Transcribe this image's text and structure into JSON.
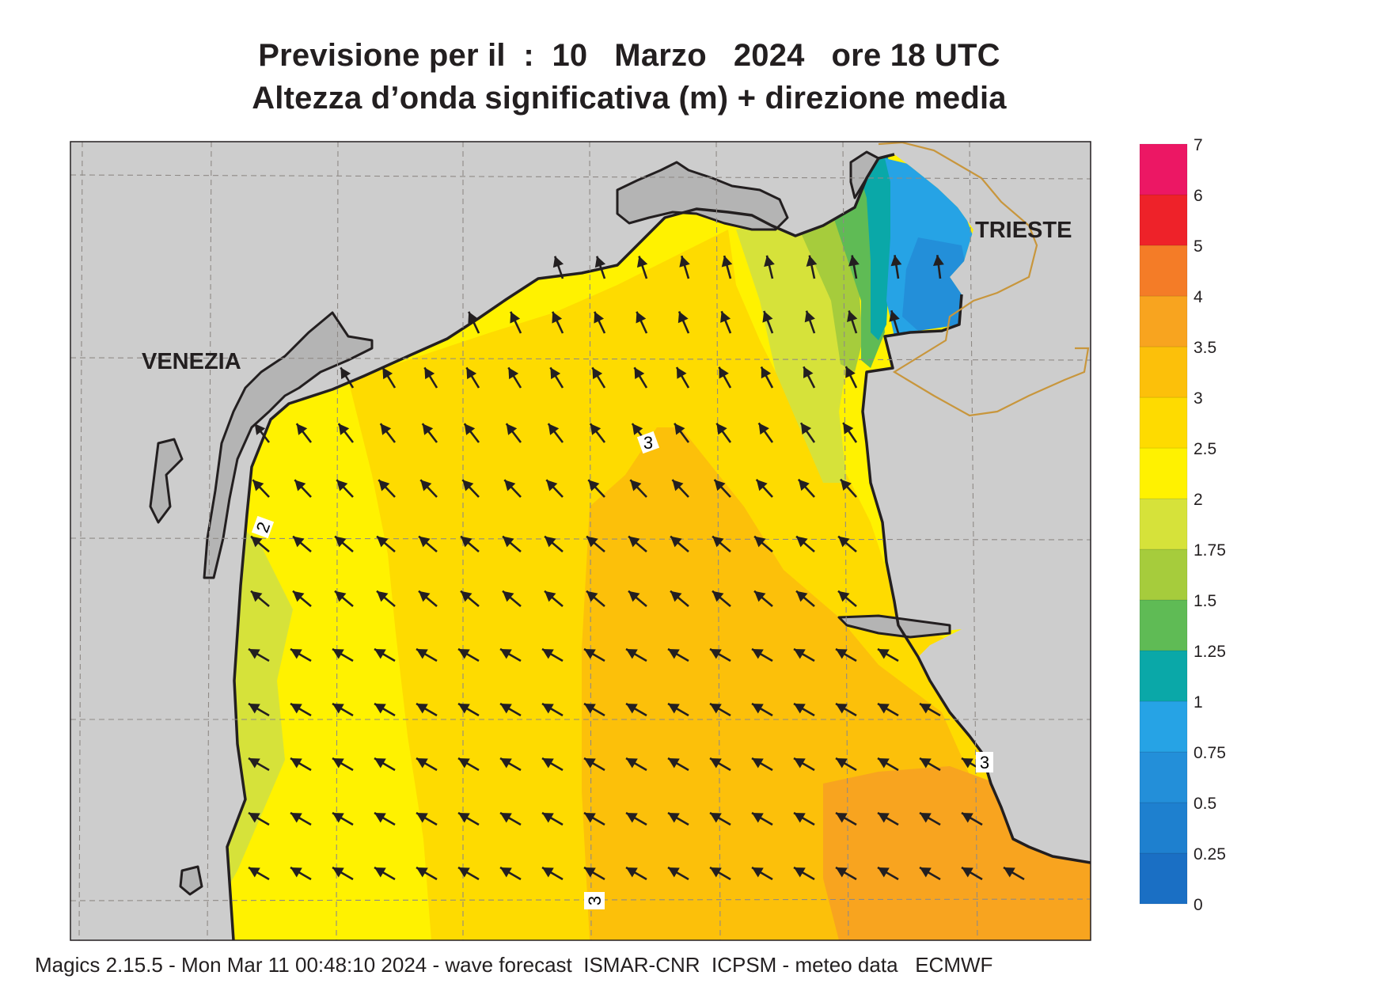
{
  "title": {
    "line1": "Previsione per il  :  10   Marzo   2024   ore 18 UTC",
    "line2": "Altezza d’onda significativa (m) + direzione media"
  },
  "places": [
    {
      "id": "venezia",
      "label": "VENEZIA"
    },
    {
      "id": "trieste",
      "label": "TRIESTE"
    }
  ],
  "contour_labels": [
    "3",
    "2",
    "3",
    "3"
  ],
  "colorbar": {
    "title": "",
    "unit": "m",
    "ticks": [
      "0",
      "0.25",
      "0.5",
      "0.75",
      "1",
      "1.25",
      "1.5",
      "1.75",
      "2",
      "2.5",
      "3",
      "3.5",
      "4",
      "5",
      "6",
      "7"
    ],
    "colors": [
      "#1a6fc4",
      "#1e80cf",
      "#238fd9",
      "#26a3e5",
      "#0aa8a8",
      "#5fbb55",
      "#a6cc3c",
      "#d6e23a",
      "#fff200",
      "#fedb00",
      "#fcc00a",
      "#f8a41f",
      "#f47c27",
      "#ee2229",
      "#ec1764"
    ]
  },
  "wave_direction": "NW",
  "footer": "Magics 2.15.5 - Mon Mar 11 00:48:10 2024 - wave forecast  ISMAR-CNR  ICPSM - meteo data   ECMWF",
  "colors": {
    "land": "#cdcdcd",
    "coast": "#231f20",
    "border": "#c8963c",
    "grid": "#8f8a86",
    "arrow": "#231f20"
  }
}
